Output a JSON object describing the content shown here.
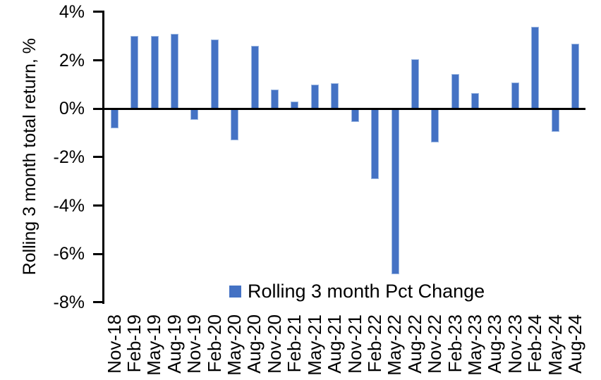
{
  "chart_data": {
    "type": "bar",
    "title": "",
    "xlabel": "",
    "ylabel": "Rolling 3 month total return, %",
    "ylim": [
      -8,
      4
    ],
    "ytick_step": 2,
    "yticks": [
      {
        "label": "4%",
        "value": 4
      },
      {
        "label": "2%",
        "value": 2
      },
      {
        "label": "0%",
        "value": 0
      },
      {
        "label": "-2%",
        "value": -2
      },
      {
        "label": "-4%",
        "value": -4
      },
      {
        "label": "-6%",
        "value": -6
      },
      {
        "label": "-8%",
        "value": -8
      }
    ],
    "categories": [
      "Nov-18",
      "Feb-19",
      "May-19",
      "Aug-19",
      "Nov-19",
      "Feb-20",
      "May-20",
      "Aug-20",
      "Nov-20",
      "Feb-21",
      "May-21",
      "Aug-21",
      "Nov-21",
      "Feb-22",
      "May-22",
      "Aug-22",
      "Nov-22",
      "Feb-23",
      "May-23",
      "Aug-23",
      "Nov-23",
      "Feb-24",
      "May-24",
      "Aug-24"
    ],
    "series": [
      {
        "name": "Rolling 3 month Pct Change",
        "values": [
          -0.8,
          3.0,
          3.0,
          3.1,
          -0.45,
          2.85,
          -1.3,
          2.6,
          0.8,
          0.3,
          1.0,
          1.05,
          -0.55,
          -2.9,
          -6.85,
          2.05,
          -1.4,
          1.45,
          0.65,
          0.0,
          1.1,
          3.4,
          -0.95,
          2.7
        ]
      }
    ],
    "grid": false,
    "legend_position": "bottom-center-inside",
    "colors": {
      "bar_fill": "#4472C4",
      "bar_border": "#9DB8E2",
      "axis": "#000000",
      "text": "#000000",
      "background": "#FFFFFF"
    }
  }
}
